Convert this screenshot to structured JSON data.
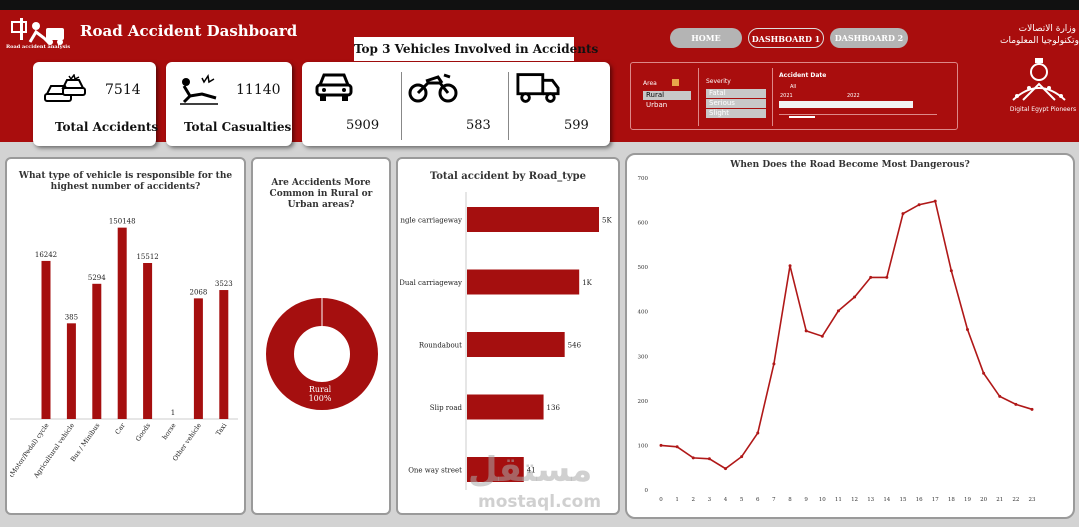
{
  "header": {
    "title": "Road Accident Dashboard",
    "logo_text": "Road accident analysis",
    "right_logo_arabic_1": "وزارة الاتصالات",
    "right_logo_arabic_2": "وتكنولوجيا المعلومات",
    "right_logo_text": "Digital Egypt Pioneers"
  },
  "kpis": {
    "total_accidents": {
      "value": "7514",
      "label": "Total Accidents",
      "icon": "car-crash-icon"
    },
    "total_casualties": {
      "value": "11140",
      "label": "Total Casualties",
      "icon": "injured-person-icon"
    }
  },
  "top3": {
    "title": "Top 3 Vehicles Involved in Accidents",
    "items": [
      {
        "icon": "car-icon",
        "value": "5909"
      },
      {
        "icon": "motorcycle-icon",
        "value": "583"
      },
      {
        "icon": "truck-icon",
        "value": "599"
      }
    ]
  },
  "nav": {
    "home": "HOME",
    "dashboard1": "DASHBOARD 1",
    "dashboard2": "DASHBOARD 2"
  },
  "filters": {
    "area": {
      "label": "Area",
      "options": [
        "Rural",
        "Urban"
      ],
      "selected": "Rural"
    },
    "severity": {
      "label": "Severity",
      "options": [
        "Fatal",
        "Serious",
        "Slight"
      ]
    },
    "date": {
      "label": "Accident Date",
      "years": [
        "2021",
        "2022"
      ],
      "sub": "All"
    }
  },
  "colors": {
    "brand": "#a90d0d",
    "bar": "#a50f0f",
    "line": "#b01818",
    "nav_active": "#b4b4b4"
  },
  "panel1": {
    "title_line1": "What type of vehicle is responsible for the",
    "title_line2": "highest number of accidents?",
    "chart_data": {
      "type": "bar",
      "categories": [
        "(Motor/Pedal) cycle",
        "Agricultural vehicle",
        "Bus / Minibus",
        "Car",
        "Goods",
        "horse",
        "Other vehicle",
        "Taxi"
      ],
      "values": [
        16242,
        385,
        5294,
        150148,
        15512,
        1,
        2068,
        3523
      ],
      "labels": [
        "16242",
        "385",
        "5294",
        "150148",
        "15512",
        "1",
        "2068",
        "3523"
      ],
      "bar_levels": [
        0.76,
        0.46,
        0.65,
        0.92,
        0.75,
        0,
        0.58,
        0.62
      ]
    }
  },
  "panel2": {
    "title_line1": "Are Accidents More",
    "title_line2": "Common in Rural or",
    "title_line3": "Urban areas?",
    "chart_data": {
      "type": "pie",
      "categories": [
        "Rural"
      ],
      "values": [
        100
      ],
      "label_name": "Rural",
      "label_pct": "100%"
    }
  },
  "panel3": {
    "title": "Total accident by Road_type",
    "chart_data": {
      "type": "bar",
      "orientation": "horizontal",
      "categories": [
        "Single carriageway",
        "Dual carriageway",
        "Roundabout",
        "Slip road",
        "One way street"
      ],
      "labels": [
        "5K",
        "1K",
        "546",
        "136",
        "41"
      ],
      "bar_levels": [
        1.0,
        0.85,
        0.74,
        0.58,
        0.43
      ]
    }
  },
  "panel4": {
    "title": "When Does the Road Become Most Dangerous?",
    "chart_data": {
      "type": "line",
      "x": [
        0,
        1,
        2,
        3,
        4,
        5,
        6,
        7,
        8,
        9,
        10,
        11,
        12,
        13,
        14,
        15,
        16,
        17,
        18,
        19,
        20,
        21,
        22,
        23
      ],
      "values": [
        100,
        97,
        72,
        70,
        48,
        75,
        128,
        283,
        503,
        357,
        345,
        402,
        433,
        477,
        477,
        620,
        640,
        648,
        492,
        360,
        262,
        210,
        192,
        181
      ],
      "yticks": [
        "0",
        "100",
        "200",
        "300",
        "400",
        "500",
        "600",
        "700"
      ],
      "ylim": [
        0,
        700
      ],
      "xticks": [
        "0",
        "1",
        "2",
        "3",
        "4",
        "5",
        "6",
        "7",
        "8",
        "9",
        "10",
        "11",
        "12",
        "13",
        "14",
        "15",
        "16",
        "17",
        "18",
        "19",
        "20",
        "21",
        "22",
        "23"
      ]
    }
  },
  "watermark": {
    "text": "mostaql.com",
    "arabic": "مستقل"
  }
}
